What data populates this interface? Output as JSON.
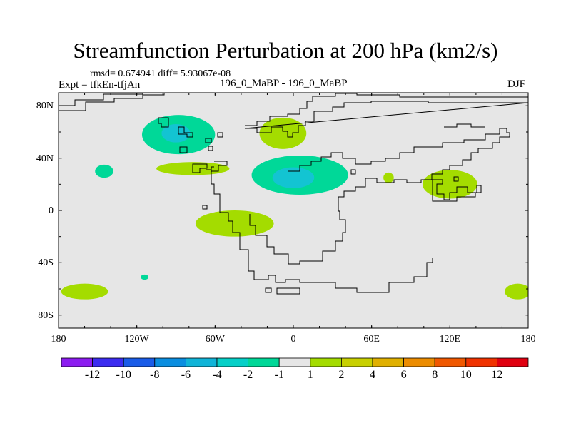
{
  "title": "Streamfunction Perturbation at 200 hPa (km2/s)",
  "stats": "rmsd= 0.674941 diff= 5.93067e-08",
  "expt": "Expt = tfkEn-tfjAn",
  "center_label": "196_0_MaBP - 196_0_MaBP",
  "season": "DJF",
  "map": {
    "type": "contour-fill map",
    "projection": "cylindrical equidistant",
    "lon_range": [
      -180,
      180
    ],
    "lat_range": [
      -90,
      90
    ],
    "background_color": "#e6e6e6",
    "coastline_color": "#000000",
    "x_ticks": [
      {
        "lon": -180,
        "label": "180"
      },
      {
        "lon": -120,
        "label": "120W"
      },
      {
        "lon": -60,
        "label": "60W"
      },
      {
        "lon": 0,
        "label": "0"
      },
      {
        "lon": 60,
        "label": "60E"
      },
      {
        "lon": 120,
        "label": "120E"
      },
      {
        "lon": 180,
        "label": "180"
      }
    ],
    "y_ticks": [
      {
        "lat": 80,
        "label": "80N"
      },
      {
        "lat": 40,
        "label": "40N"
      },
      {
        "lat": 0,
        "label": "0"
      },
      {
        "lat": -40,
        "label": "40S"
      },
      {
        "lat": -80,
        "label": "80S"
      }
    ],
    "anomalies": [
      {
        "lon": -88,
        "lat": 58,
        "rx": 28,
        "ry": 15,
        "level": -2,
        "color": "#00d898"
      },
      {
        "lon": -90,
        "lat": 59,
        "rx": 11,
        "ry": 7,
        "level": -4,
        "color": "#13c4d2"
      },
      {
        "lon": -145,
        "lat": 30,
        "rx": 7,
        "ry": 5,
        "level": -2,
        "color": "#00d898"
      },
      {
        "lon": 5,
        "lat": 27,
        "rx": 37,
        "ry": 15,
        "level": -2,
        "color": "#00d898"
      },
      {
        "lon": 0,
        "lat": 25,
        "rx": 16,
        "ry": 8,
        "level": -4,
        "color": "#13c4d2"
      },
      {
        "lon": -8,
        "lat": 59,
        "rx": 18,
        "ry": 12,
        "level": 2,
        "color": "#a4dc00"
      },
      {
        "lon": -77,
        "lat": 32,
        "rx": 28,
        "ry": 5,
        "level": 2,
        "color": "#a4dc00"
      },
      {
        "lon": -45,
        "lat": -10,
        "rx": 30,
        "ry": 10,
        "level": 2,
        "color": "#a4dc00"
      },
      {
        "lon": 73,
        "lat": 25,
        "rx": 4,
        "ry": 4,
        "level": 2,
        "color": "#a4dc00"
      },
      {
        "lon": 120,
        "lat": 20,
        "rx": 21,
        "ry": 11,
        "level": 2,
        "color": "#a4dc00"
      },
      {
        "lon": -160,
        "lat": -62,
        "rx": 18,
        "ry": 6,
        "level": 2,
        "color": "#a4dc00"
      },
      {
        "lon": 172,
        "lat": -62,
        "rx": 10,
        "ry": 6,
        "level": 2,
        "color": "#a4dc00"
      },
      {
        "lon": -114,
        "lat": -51,
        "rx": 3,
        "ry": 2,
        "level": -2,
        "color": "#00d898"
      }
    ]
  },
  "colorbar": {
    "levels": [
      "-12",
      "-10",
      "-8",
      "-6",
      "-4",
      "-2",
      "-1",
      "1",
      "2",
      "4",
      "6",
      "8",
      "10",
      "12"
    ],
    "colors": [
      "#8c1cf0",
      "#3c2cf0",
      "#1a5ce8",
      "#0a8ee0",
      "#10b4d8",
      "#06d0c8",
      "#00d898",
      "#e6e6e6",
      "#a4dc00",
      "#c8d000",
      "#e0b000",
      "#ec8c00",
      "#f05800",
      "#f03200",
      "#e00010"
    ]
  }
}
